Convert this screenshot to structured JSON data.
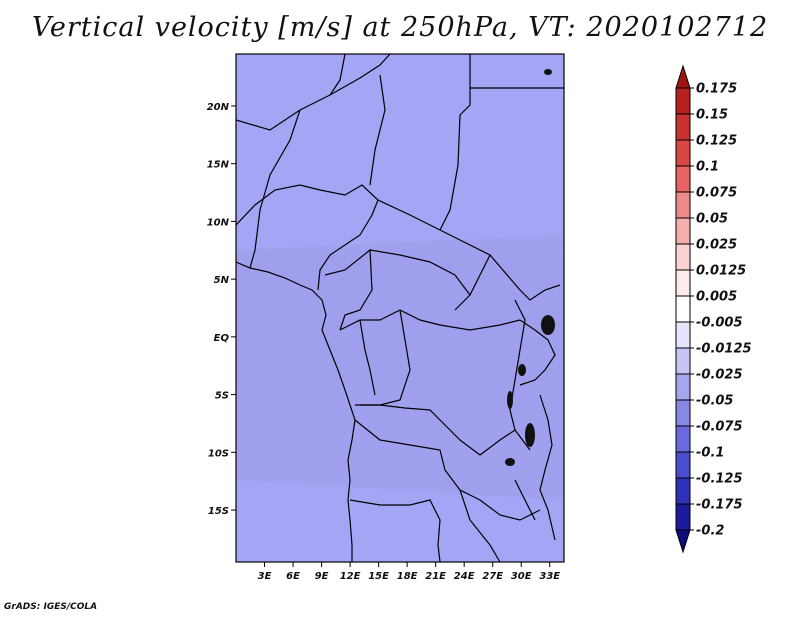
{
  "title": "Vertical velocity [m/s] at 250hPa, VT: 2020102712",
  "credit": "GrADS: IGES/COLA",
  "map": {
    "lat_range": [
      -19.5,
      24.5
    ],
    "lon_range": [
      0,
      34.5
    ],
    "lat_ticks": [
      {
        "value": 20,
        "label": "20N"
      },
      {
        "value": 15,
        "label": "15N"
      },
      {
        "value": 10,
        "label": "10N"
      },
      {
        "value": 5,
        "label": "5N"
      },
      {
        "value": 0,
        "label": "EQ"
      },
      {
        "value": -5,
        "label": "5S"
      },
      {
        "value": -10,
        "label": "10S"
      },
      {
        "value": -15,
        "label": "15S"
      }
    ],
    "lon_ticks": [
      {
        "value": 3,
        "label": "3E"
      },
      {
        "value": 6,
        "label": "6E"
      },
      {
        "value": 9,
        "label": "9E"
      },
      {
        "value": 12,
        "label": "12E"
      },
      {
        "value": 15,
        "label": "15E"
      },
      {
        "value": 18,
        "label": "18E"
      },
      {
        "value": 21,
        "label": "21E"
      },
      {
        "value": 24,
        "label": "24E"
      },
      {
        "value": 27,
        "label": "27E"
      },
      {
        "value": 30,
        "label": "30E"
      },
      {
        "value": 33,
        "label": "33E"
      }
    ]
  },
  "colorbar": {
    "levels": [
      "0.175",
      "0.15",
      "0.125",
      "0.1",
      "0.075",
      "0.05",
      "0.025",
      "0.0125",
      "0.005",
      "-0.005",
      "-0.0125",
      "-0.025",
      "-0.05",
      "-0.075",
      "-0.1",
      "-0.125",
      "-0.175",
      "-0.2"
    ],
    "colors": [
      "#a01414",
      "#b52020",
      "#c83232",
      "#d84646",
      "#e66464",
      "#ee8a8a",
      "#f5aeae",
      "#fad2d2",
      "#fdeaea",
      "#ffffff",
      "#e4e4fb",
      "#c6c6f5",
      "#a6a6ee",
      "#8888e6",
      "#6a6ade",
      "#4c4cd0",
      "#3030b8",
      "#1a1a9a",
      "#0e0e7a"
    ]
  }
}
